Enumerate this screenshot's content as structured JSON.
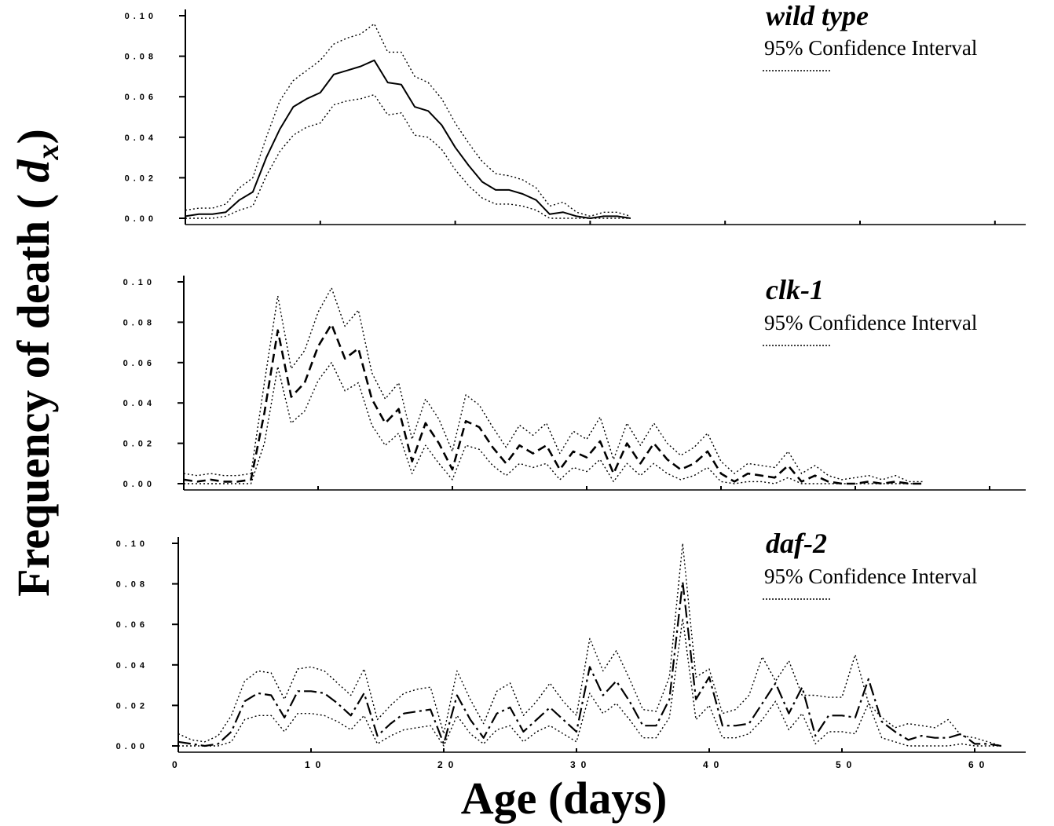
{
  "chart_data": [
    {
      "type": "line",
      "title": "wild type",
      "legend": {
        "ci_label": "95% Confidence Interval",
        "placement": "top-right"
      },
      "ylabel": "Frequency of death (dx)",
      "ylim": [
        0,
        0.1
      ],
      "yticks": [
        0.0,
        0.02,
        0.04,
        0.06,
        0.08,
        0.1
      ],
      "ytick_labels": [
        "0.00",
        "0.02",
        "0.04",
        "0.06",
        "0.08",
        "0.10"
      ],
      "xlim": [
        0,
        64
      ],
      "xticks": [
        10,
        20,
        30,
        40,
        50,
        60
      ],
      "series": [
        {
          "name": "dx",
          "style": "solid",
          "x": [
            0,
            1,
            2,
            3,
            4,
            5,
            6,
            7,
            8,
            9,
            10,
            11,
            12,
            13,
            14,
            15,
            16,
            17,
            18,
            19,
            20,
            21,
            22,
            23,
            24,
            25,
            26,
            27,
            28,
            29,
            30,
            31,
            32,
            33
          ],
          "y": [
            0.001,
            0.002,
            0.002,
            0.003,
            0.009,
            0.013,
            0.03,
            0.044,
            0.055,
            0.059,
            0.062,
            0.071,
            0.073,
            0.075,
            0.078,
            0.067,
            0.066,
            0.055,
            0.053,
            0.046,
            0.035,
            0.026,
            0.018,
            0.014,
            0.014,
            0.012,
            0.009,
            0.002,
            0.003,
            0.001,
            0.0,
            0.001,
            0.001,
            0.0
          ]
        },
        {
          "name": "upper",
          "style": "dotted",
          "x": [
            0,
            1,
            2,
            3,
            4,
            5,
            6,
            7,
            8,
            9,
            10,
            11,
            12,
            13,
            14,
            15,
            16,
            17,
            18,
            19,
            20,
            21,
            22,
            23,
            24,
            25,
            26,
            27,
            28,
            29,
            30,
            31,
            32,
            33
          ],
          "y": [
            0.004,
            0.005,
            0.005,
            0.007,
            0.015,
            0.02,
            0.04,
            0.058,
            0.068,
            0.073,
            0.078,
            0.086,
            0.089,
            0.091,
            0.096,
            0.082,
            0.082,
            0.07,
            0.067,
            0.059,
            0.047,
            0.037,
            0.028,
            0.022,
            0.021,
            0.019,
            0.015,
            0.006,
            0.008,
            0.003,
            0.001,
            0.003,
            0.003,
            0.001
          ]
        },
        {
          "name": "lower",
          "style": "dotted",
          "x": [
            0,
            1,
            2,
            3,
            4,
            5,
            6,
            7,
            8,
            9,
            10,
            11,
            12,
            13,
            14,
            15,
            16,
            17,
            18,
            19,
            20,
            21,
            22,
            23,
            24,
            25,
            26,
            27,
            28,
            29,
            30,
            31,
            32,
            33
          ],
          "y": [
            0.0,
            0.0,
            0.0,
            0.001,
            0.004,
            0.006,
            0.021,
            0.033,
            0.041,
            0.045,
            0.047,
            0.056,
            0.058,
            0.059,
            0.061,
            0.051,
            0.052,
            0.041,
            0.04,
            0.034,
            0.024,
            0.016,
            0.01,
            0.007,
            0.007,
            0.006,
            0.004,
            0.0,
            0.0,
            0.0,
            0.0,
            0.0,
            0.0,
            0.0
          ]
        }
      ]
    },
    {
      "type": "line",
      "title": "clk-1",
      "legend": {
        "ci_label": "95% Confidence Interval",
        "placement": "top-right"
      },
      "ylim": [
        0,
        0.1
      ],
      "yticks": [
        0.0,
        0.02,
        0.04,
        0.06,
        0.08,
        0.1
      ],
      "ytick_labels": [
        "0.00",
        "0.02",
        "0.04",
        "0.06",
        "0.08",
        "0.10"
      ],
      "xlim": [
        0,
        64
      ],
      "xticks": [
        10,
        20,
        30,
        40,
        50,
        60
      ],
      "series": [
        {
          "name": "dx",
          "style": "dashed",
          "x": [
            0,
            1,
            2,
            3,
            4,
            5,
            6,
            7,
            8,
            9,
            10,
            11,
            12,
            13,
            14,
            15,
            16,
            17,
            18,
            19,
            20,
            21,
            22,
            23,
            24,
            25,
            26,
            27,
            28,
            29,
            30,
            31,
            32,
            33,
            34,
            35,
            36,
            37,
            38,
            39,
            40,
            41,
            42,
            43,
            44,
            45,
            46,
            47,
            48,
            49,
            50,
            51,
            52,
            53,
            54,
            55
          ],
          "y": [
            0.002,
            0.001,
            0.002,
            0.001,
            0.001,
            0.002,
            0.035,
            0.076,
            0.043,
            0.05,
            0.068,
            0.079,
            0.062,
            0.067,
            0.042,
            0.03,
            0.037,
            0.011,
            0.03,
            0.02,
            0.007,
            0.031,
            0.028,
            0.018,
            0.01,
            0.019,
            0.015,
            0.019,
            0.007,
            0.016,
            0.013,
            0.021,
            0.005,
            0.02,
            0.01,
            0.02,
            0.012,
            0.007,
            0.01,
            0.016,
            0.005,
            0.001,
            0.005,
            0.004,
            0.003,
            0.009,
            0.001,
            0.004,
            0.001,
            0.0,
            0.0,
            0.001,
            0.0,
            0.001,
            0.0,
            0.0
          ]
        },
        {
          "name": "upper",
          "style": "dotted",
          "x": [
            0,
            1,
            2,
            3,
            4,
            5,
            6,
            7,
            8,
            9,
            10,
            11,
            12,
            13,
            14,
            15,
            16,
            17,
            18,
            19,
            20,
            21,
            22,
            23,
            24,
            25,
            26,
            27,
            28,
            29,
            30,
            31,
            32,
            33,
            34,
            35,
            36,
            37,
            38,
            39,
            40,
            41,
            42,
            43,
            44,
            45,
            46,
            47,
            48,
            49,
            50,
            51,
            52,
            53,
            54,
            55
          ],
          "y": [
            0.005,
            0.004,
            0.005,
            0.004,
            0.004,
            0.005,
            0.05,
            0.093,
            0.057,
            0.066,
            0.085,
            0.097,
            0.078,
            0.086,
            0.055,
            0.042,
            0.05,
            0.022,
            0.042,
            0.032,
            0.016,
            0.044,
            0.039,
            0.028,
            0.018,
            0.029,
            0.024,
            0.03,
            0.015,
            0.026,
            0.022,
            0.033,
            0.012,
            0.03,
            0.019,
            0.03,
            0.02,
            0.014,
            0.018,
            0.025,
            0.011,
            0.005,
            0.01,
            0.009,
            0.008,
            0.016,
            0.005,
            0.009,
            0.004,
            0.002,
            0.003,
            0.004,
            0.002,
            0.004,
            0.001,
            0.001
          ]
        },
        {
          "name": "lower",
          "style": "dotted",
          "x": [
            0,
            1,
            2,
            3,
            4,
            5,
            6,
            7,
            8,
            9,
            10,
            11,
            12,
            13,
            14,
            15,
            16,
            17,
            18,
            19,
            20,
            21,
            22,
            23,
            24,
            25,
            26,
            27,
            28,
            29,
            30,
            31,
            32,
            33,
            34,
            35,
            36,
            37,
            38,
            39,
            40,
            41,
            42,
            43,
            44,
            45,
            46,
            47,
            48,
            49,
            50,
            51,
            52,
            53,
            54,
            55
          ],
          "y": [
            0.0,
            0.0,
            0.0,
            0.0,
            0.0,
            0.0,
            0.02,
            0.058,
            0.03,
            0.036,
            0.051,
            0.06,
            0.046,
            0.05,
            0.029,
            0.019,
            0.025,
            0.005,
            0.019,
            0.01,
            0.002,
            0.019,
            0.017,
            0.009,
            0.004,
            0.01,
            0.008,
            0.01,
            0.002,
            0.008,
            0.006,
            0.012,
            0.001,
            0.01,
            0.004,
            0.01,
            0.005,
            0.002,
            0.004,
            0.008,
            0.001,
            0.0,
            0.001,
            0.001,
            0.0,
            0.003,
            0.0,
            0.0,
            0.0,
            0.0,
            0.0,
            0.0,
            0.0,
            0.0,
            0.0,
            0.0
          ]
        }
      ]
    },
    {
      "type": "line",
      "title": "daf-2",
      "legend": {
        "ci_label": "95% Confidence Interval",
        "placement": "top-right"
      },
      "ylim": [
        0,
        0.1
      ],
      "yticks": [
        0.0,
        0.02,
        0.04,
        0.06,
        0.08,
        0.1
      ],
      "ytick_labels": [
        "0.00",
        "0.02",
        "0.04",
        "0.06",
        "0.08",
        "0.10"
      ],
      "xlabel": "Age (days)",
      "xlim": [
        0,
        64
      ],
      "xticks": [
        0,
        10,
        20,
        30,
        40,
        50,
        60
      ],
      "xtick_labels": [
        "0",
        "10",
        "20",
        "30",
        "40",
        "50",
        "60"
      ],
      "series": [
        {
          "name": "dx",
          "style": "dash-dot",
          "x": [
            0,
            1,
            2,
            3,
            4,
            5,
            6,
            7,
            8,
            9,
            10,
            11,
            12,
            13,
            14,
            15,
            16,
            17,
            18,
            19,
            20,
            21,
            22,
            23,
            24,
            25,
            26,
            27,
            28,
            29,
            30,
            31,
            32,
            33,
            34,
            35,
            36,
            37,
            38,
            39,
            40,
            41,
            42,
            43,
            44,
            45,
            46,
            47,
            48,
            49,
            50,
            51,
            52,
            53,
            54,
            55,
            56,
            57,
            58,
            59,
            60,
            61,
            62
          ],
          "y": [
            0.002,
            0.001,
            0.0,
            0.001,
            0.007,
            0.022,
            0.026,
            0.025,
            0.014,
            0.027,
            0.027,
            0.026,
            0.021,
            0.015,
            0.026,
            0.005,
            0.011,
            0.016,
            0.017,
            0.018,
            0.001,
            0.025,
            0.013,
            0.004,
            0.016,
            0.019,
            0.007,
            0.013,
            0.019,
            0.013,
            0.007,
            0.039,
            0.025,
            0.032,
            0.022,
            0.01,
            0.01,
            0.023,
            0.081,
            0.023,
            0.034,
            0.01,
            0.01,
            0.011,
            0.021,
            0.031,
            0.016,
            0.029,
            0.005,
            0.015,
            0.015,
            0.014,
            0.033,
            0.012,
            0.007,
            0.003,
            0.005,
            0.004,
            0.004,
            0.006,
            0.001,
            0.001,
            0.0
          ]
        },
        {
          "name": "upper",
          "style": "dotted",
          "x": [
            0,
            1,
            2,
            3,
            4,
            5,
            6,
            7,
            8,
            9,
            10,
            11,
            12,
            13,
            14,
            15,
            16,
            17,
            18,
            19,
            20,
            21,
            22,
            23,
            24,
            25,
            26,
            27,
            28,
            29,
            30,
            31,
            32,
            33,
            34,
            35,
            36,
            37,
            38,
            39,
            40,
            41,
            42,
            43,
            44,
            45,
            46,
            47,
            48,
            49,
            50,
            51,
            52,
            53,
            54,
            55,
            56,
            57,
            58,
            59,
            60,
            61,
            62
          ],
          "y": [
            0.006,
            0.003,
            0.002,
            0.005,
            0.015,
            0.032,
            0.037,
            0.036,
            0.023,
            0.038,
            0.039,
            0.037,
            0.031,
            0.025,
            0.038,
            0.013,
            0.02,
            0.026,
            0.028,
            0.029,
            0.006,
            0.037,
            0.023,
            0.011,
            0.027,
            0.031,
            0.015,
            0.022,
            0.031,
            0.022,
            0.015,
            0.053,
            0.037,
            0.047,
            0.033,
            0.018,
            0.017,
            0.034,
            0.1,
            0.034,
            0.038,
            0.016,
            0.018,
            0.025,
            0.044,
            0.032,
            0.042,
            0.025,
            0.025,
            0.024,
            0.024,
            0.045,
            0.021,
            0.014,
            0.009,
            0.011,
            0.01,
            0.009,
            0.013,
            0.005,
            0.004,
            0.002,
            0.0
          ]
        },
        {
          "name": "lower",
          "style": "dotted",
          "x": [
            0,
            1,
            2,
            3,
            4,
            5,
            6,
            7,
            8,
            9,
            10,
            11,
            12,
            13,
            14,
            15,
            16,
            17,
            18,
            19,
            20,
            21,
            22,
            23,
            24,
            25,
            26,
            27,
            28,
            29,
            30,
            31,
            32,
            33,
            34,
            35,
            36,
            37,
            38,
            39,
            40,
            41,
            42,
            43,
            44,
            45,
            46,
            47,
            48,
            49,
            50,
            51,
            52,
            53,
            54,
            55,
            56,
            57,
            58,
            59,
            60,
            61,
            62
          ],
          "y": [
            0.0,
            0.0,
            0.0,
            0.0,
            0.002,
            0.013,
            0.015,
            0.015,
            0.007,
            0.016,
            0.016,
            0.015,
            0.012,
            0.008,
            0.015,
            0.001,
            0.005,
            0.008,
            0.009,
            0.01,
            0.0,
            0.015,
            0.006,
            0.001,
            0.008,
            0.01,
            0.002,
            0.007,
            0.01,
            0.006,
            0.002,
            0.026,
            0.016,
            0.021,
            0.013,
            0.004,
            0.004,
            0.014,
            0.063,
            0.013,
            0.02,
            0.004,
            0.004,
            0.006,
            0.013,
            0.022,
            0.008,
            0.016,
            0.001,
            0.007,
            0.007,
            0.006,
            0.021,
            0.004,
            0.002,
            0.0,
            0.0,
            0.0,
            0.0,
            0.001,
            0.0,
            0.0,
            0.0
          ]
        }
      ]
    }
  ]
}
